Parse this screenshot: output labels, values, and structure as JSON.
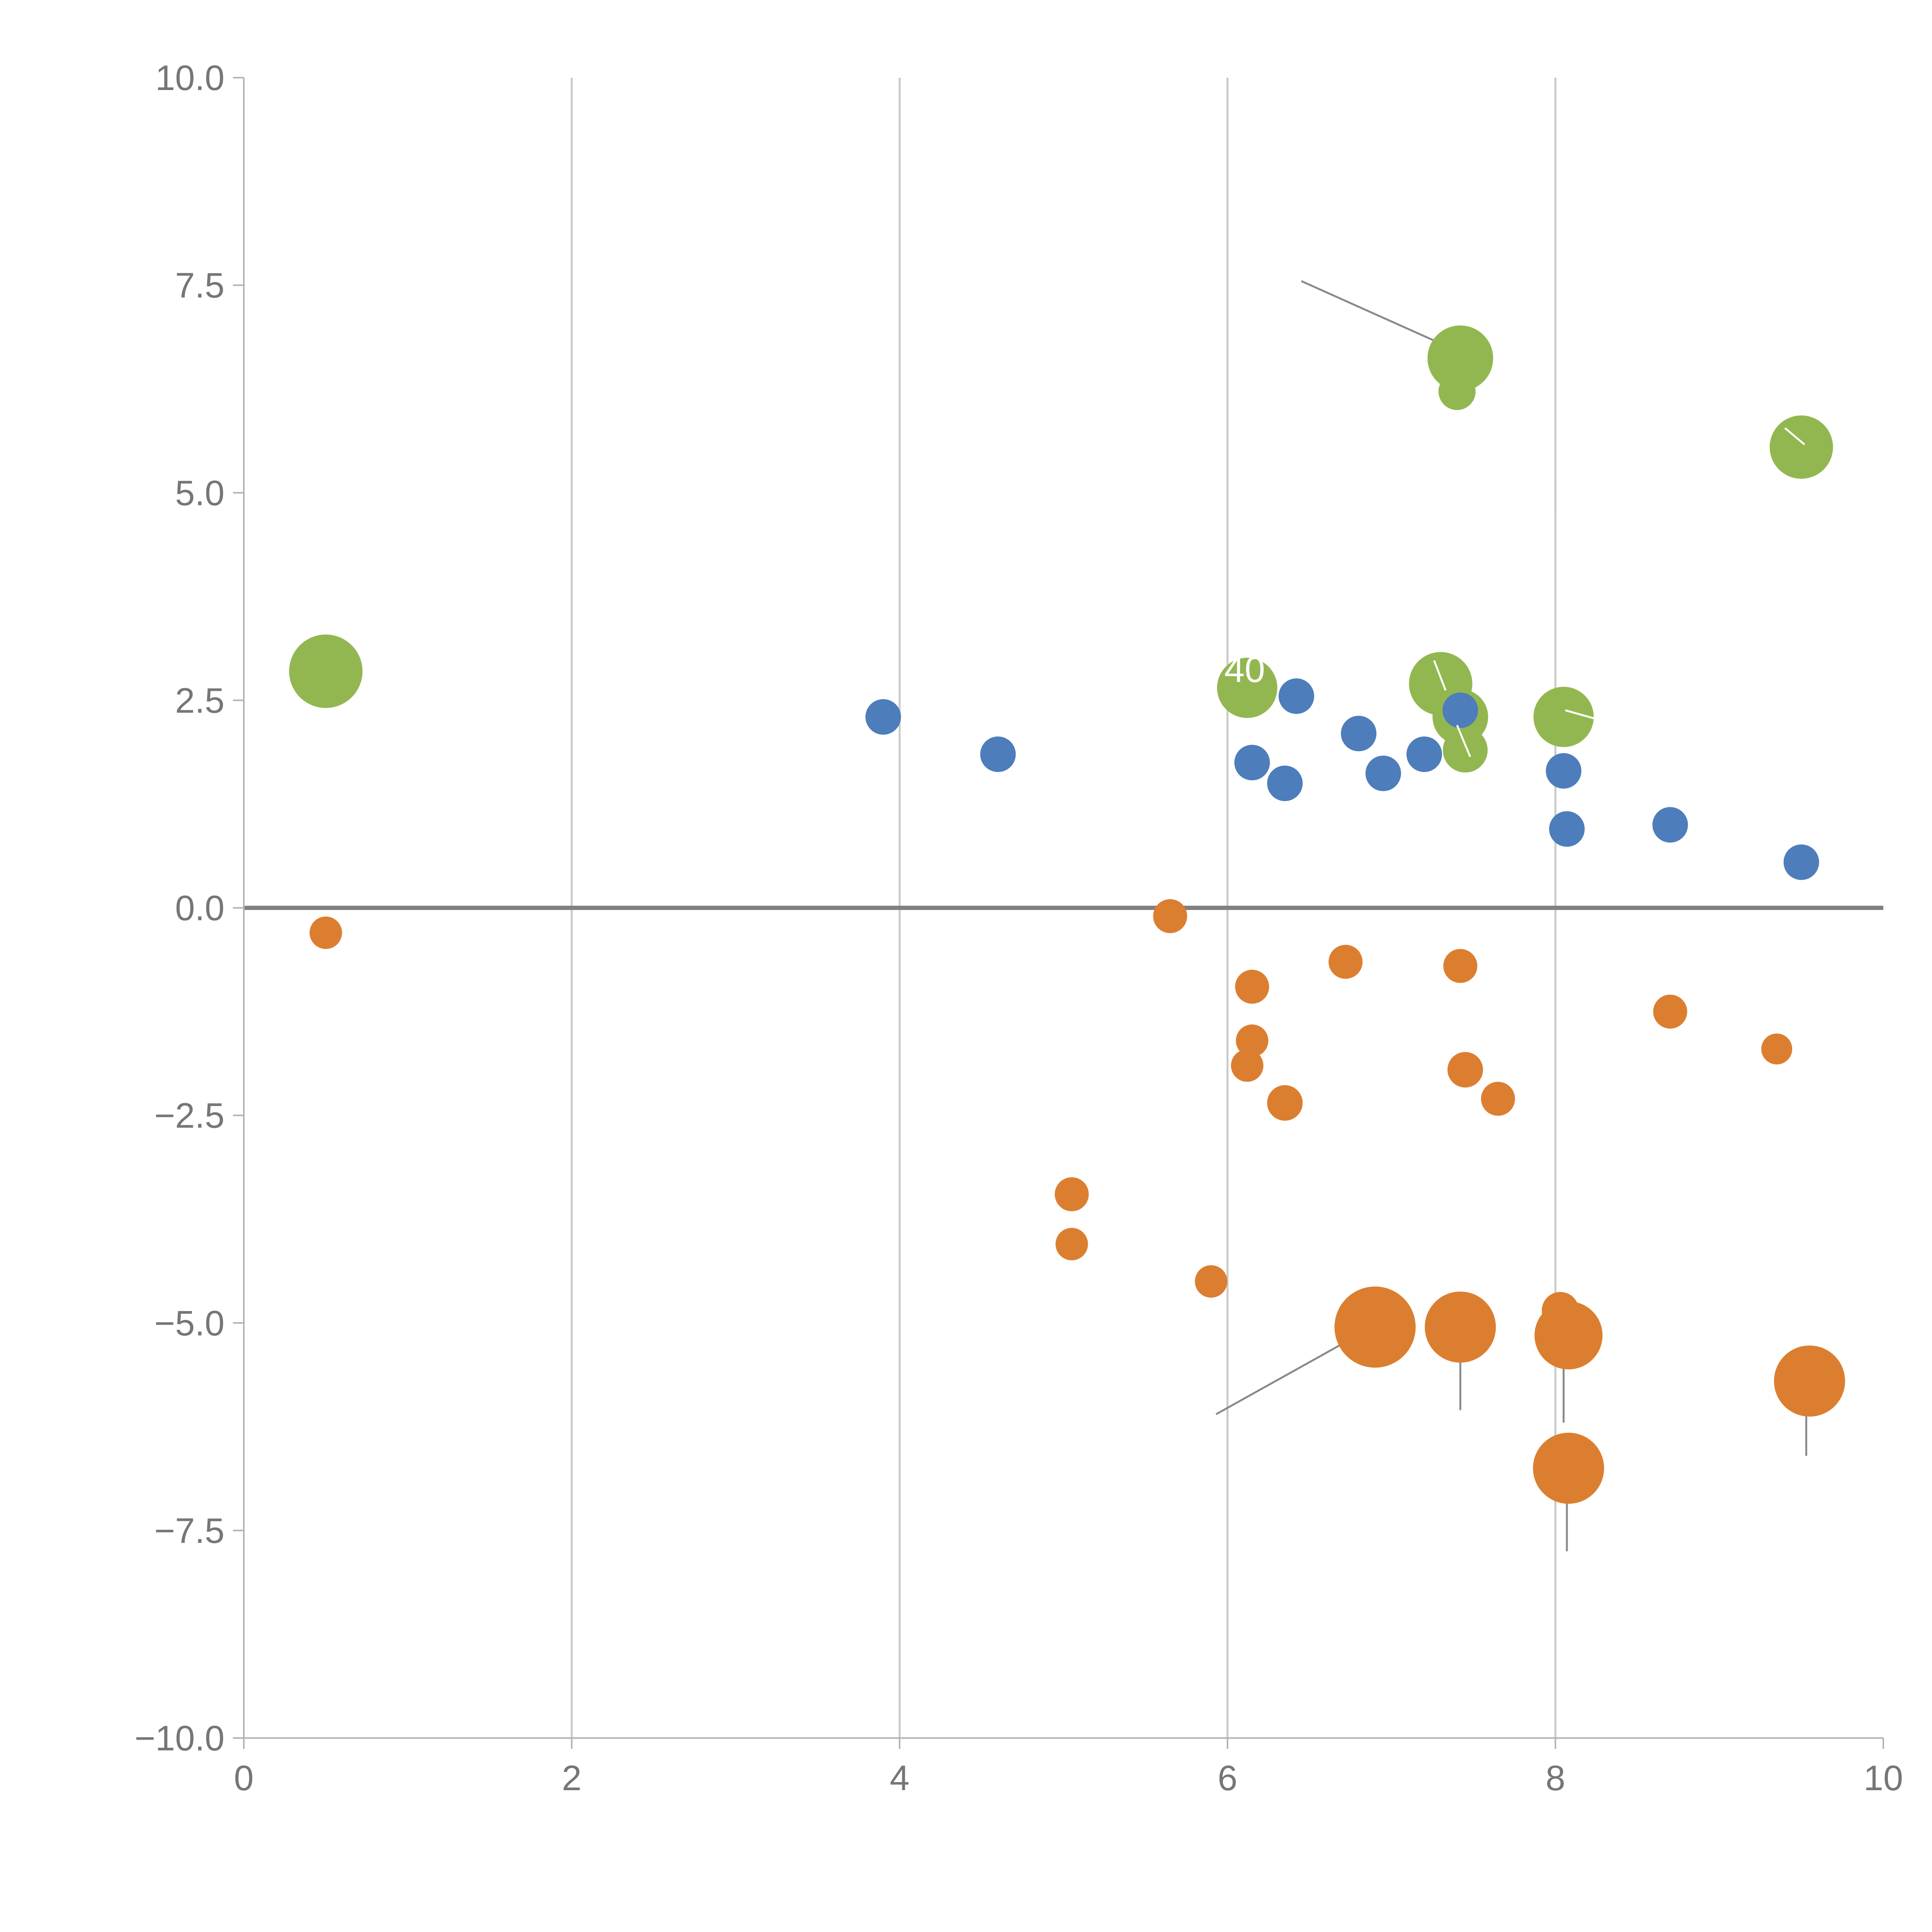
{
  "chart_data": {
    "type": "scatter",
    "title": "",
    "xlabel": "",
    "ylabel": "",
    "xlim": [
      0,
      10
    ],
    "ylim": [
      -10,
      10
    ],
    "x_ticks": [
      0,
      2,
      4,
      6,
      8,
      10
    ],
    "x_tick_labels": [
      "0",
      "2",
      "4",
      "6",
      "8",
      "10"
    ],
    "y_ticks": [
      10.0,
      7.5,
      5.0,
      2.5,
      0.0,
      -2.5,
      -5.0,
      -7.5,
      -10.0
    ],
    "y_tick_labels": [
      "10.0",
      "7.5",
      "5.0",
      "2.5",
      "0.0",
      "−2.5",
      "−5.0",
      "−7.5",
      "−10.0"
    ],
    "vertical_gridlines": [
      2,
      4,
      6,
      8
    ],
    "grid_color": "#c9c9c9",
    "zero_line": {
      "y": 0,
      "color": "#808080"
    },
    "axis_color": "#b3b3b3",
    "tick_label_color": "#767676",
    "legend": "none",
    "series": [
      {
        "name": "green",
        "color": "#93b750",
        "points": [
          {
            "x": 0.5,
            "y": 2.85,
            "r": 95
          },
          {
            "x": 7.42,
            "y": 6.62,
            "r": 85
          },
          {
            "x": 7.4,
            "y": 6.22,
            "r": 48
          },
          {
            "x": 9.5,
            "y": 5.55,
            "r": 82
          },
          {
            "x": 6.12,
            "y": 2.65,
            "r": 78
          },
          {
            "x": 7.3,
            "y": 2.7,
            "r": 82
          },
          {
            "x": 7.42,
            "y": 2.3,
            "r": 72
          },
          {
            "x": 7.45,
            "y": 1.9,
            "r": 58
          },
          {
            "x": 8.05,
            "y": 2.3,
            "r": 78
          }
        ]
      },
      {
        "name": "blue",
        "color": "#4d7dbb",
        "points": [
          {
            "x": 3.9,
            "y": 2.3,
            "r": 46
          },
          {
            "x": 4.6,
            "y": 1.85,
            "r": 46
          },
          {
            "x": 6.15,
            "y": 1.75,
            "r": 46
          },
          {
            "x": 6.35,
            "y": 1.5,
            "r": 46
          },
          {
            "x": 6.42,
            "y": 2.55,
            "r": 46
          },
          {
            "x": 6.8,
            "y": 2.1,
            "r": 46
          },
          {
            "x": 6.95,
            "y": 1.62,
            "r": 46
          },
          {
            "x": 7.2,
            "y": 1.85,
            "r": 46
          },
          {
            "x": 7.42,
            "y": 2.38,
            "r": 46
          },
          {
            "x": 8.05,
            "y": 1.65,
            "r": 46
          },
          {
            "x": 8.07,
            "y": 0.95,
            "r": 46
          },
          {
            "x": 8.7,
            "y": 1.0,
            "r": 46
          },
          {
            "x": 9.5,
            "y": 0.55,
            "r": 46
          }
        ]
      },
      {
        "name": "orange",
        "color": "#dc7e30",
        "points": [
          {
            "x": 0.5,
            "y": -0.3,
            "r": 42
          },
          {
            "x": 5.65,
            "y": -0.1,
            "r": 44
          },
          {
            "x": 6.15,
            "y": -0.95,
            "r": 44
          },
          {
            "x": 6.72,
            "y": -0.65,
            "r": 44
          },
          {
            "x": 7.42,
            "y": -0.7,
            "r": 44
          },
          {
            "x": 6.15,
            "y": -1.6,
            "r": 42
          },
          {
            "x": 6.12,
            "y": -1.9,
            "r": 42
          },
          {
            "x": 6.35,
            "y": -2.35,
            "r": 46
          },
          {
            "x": 7.45,
            "y": -1.95,
            "r": 46
          },
          {
            "x": 7.65,
            "y": -2.3,
            "r": 44
          },
          {
            "x": 8.7,
            "y": -1.25,
            "r": 44
          },
          {
            "x": 9.35,
            "y": -1.7,
            "r": 40
          },
          {
            "x": 5.05,
            "y": -3.45,
            "r": 44
          },
          {
            "x": 5.05,
            "y": -4.05,
            "r": 42
          },
          {
            "x": 5.9,
            "y": -4.5,
            "r": 42
          },
          {
            "x": 6.9,
            "y": -5.05,
            "r": 105
          },
          {
            "x": 7.42,
            "y": -5.05,
            "r": 92
          },
          {
            "x": 8.03,
            "y": -4.85,
            "r": 48
          },
          {
            "x": 8.08,
            "y": -5.15,
            "r": 88
          },
          {
            "x": 8.08,
            "y": -6.75,
            "r": 92
          },
          {
            "x": 9.55,
            "y": -5.7,
            "r": 92
          }
        ]
      }
    ],
    "annotation_lines_under": [
      {
        "x1": 6.45,
        "y1": 7.55,
        "x2": 7.32,
        "y2": 6.78,
        "color": "#8a8a8a",
        "w": 5
      },
      {
        "x1": 5.93,
        "y1": -6.1,
        "x2": 6.82,
        "y2": -5.12,
        "color": "#8a8a8a",
        "w": 5
      },
      {
        "x1": 7.42,
        "y1": -5.2,
        "x2": 7.42,
        "y2": -6.05,
        "color": "#8a8a8a",
        "w": 5
      },
      {
        "x1": 8.05,
        "y1": -5.3,
        "x2": 8.05,
        "y2": -6.2,
        "color": "#8a8a8a",
        "w": 5
      },
      {
        "x1": 8.07,
        "y1": -6.8,
        "x2": 8.07,
        "y2": -7.75,
        "color": "#8a8a8a",
        "w": 5
      },
      {
        "x1": 9.53,
        "y1": -5.8,
        "x2": 9.53,
        "y2": -6.6,
        "color": "#8a8a8a",
        "w": 5
      },
      {
        "x1": 8.0,
        "y1": 5.15,
        "x2": 8.0,
        "y2": 4.72,
        "color": "#c6c6c6",
        "w": 4
      }
    ],
    "annotation_lines_over": [
      {
        "x1": 7.26,
        "y1": 2.98,
        "x2": 7.33,
        "y2": 2.62,
        "color": "#ffffff",
        "w": 5
      },
      {
        "x1": 8.06,
        "y1": 2.38,
        "x2": 8.24,
        "y2": 2.28,
        "color": "#ffffff",
        "w": 5
      },
      {
        "x1": 9.4,
        "y1": 5.78,
        "x2": 9.52,
        "y2": 5.58,
        "color": "#ffffff",
        "w": 5
      },
      {
        "x1": 7.4,
        "y1": 2.2,
        "x2": 7.48,
        "y2": 1.82,
        "color": "#ffffff",
        "w": 5
      }
    ],
    "point_labels": [
      {
        "text": "40",
        "x": 5.98,
        "y": 2.72,
        "color": "#ffffff",
        "size": 95
      }
    ]
  }
}
